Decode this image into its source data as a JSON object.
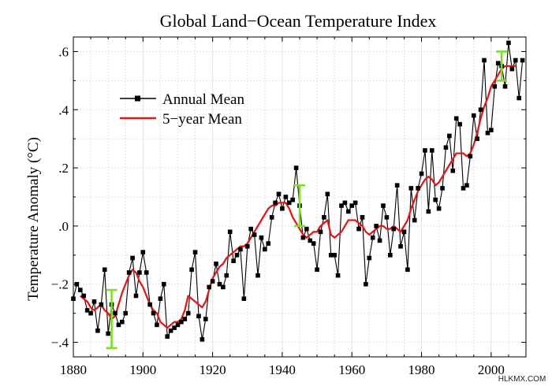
{
  "chart_data": {
    "type": "line",
    "title": "Global Land−Ocean Temperature Index",
    "xlabel": "",
    "ylabel": "Temperature Anomaly (°C)",
    "xlim": [
      1880,
      2010
    ],
    "ylim": [
      -0.45,
      0.65
    ],
    "x_ticks": [
      1880,
      1900,
      1920,
      1940,
      1960,
      1980,
      2000
    ],
    "y_ticks": [
      -0.4,
      -0.2,
      0.0,
      0.2,
      0.4,
      0.6
    ],
    "y_tick_labels": [
      "−.4",
      "−.2",
      ".0",
      ".2",
      ".4",
      ".6"
    ],
    "grid": true,
    "legend_position": "upper-left",
    "series": [
      {
        "name": "Annual Mean",
        "color": "#000000",
        "marker": "square",
        "x": [
          1880,
          1881,
          1882,
          1883,
          1884,
          1885,
          1886,
          1887,
          1888,
          1889,
          1890,
          1891,
          1892,
          1893,
          1894,
          1895,
          1896,
          1897,
          1898,
          1899,
          1900,
          1901,
          1902,
          1903,
          1904,
          1905,
          1906,
          1907,
          1908,
          1909,
          1910,
          1911,
          1912,
          1913,
          1914,
          1915,
          1916,
          1917,
          1918,
          1919,
          1920,
          1921,
          1922,
          1923,
          1924,
          1925,
          1926,
          1927,
          1928,
          1929,
          1930,
          1931,
          1932,
          1933,
          1934,
          1935,
          1936,
          1937,
          1938,
          1939,
          1940,
          1941,
          1942,
          1943,
          1944,
          1945,
          1946,
          1947,
          1948,
          1949,
          1950,
          1951,
          1952,
          1953,
          1954,
          1955,
          1956,
          1957,
          1958,
          1959,
          1960,
          1961,
          1962,
          1963,
          1964,
          1965,
          1966,
          1967,
          1968,
          1969,
          1970,
          1971,
          1972,
          1973,
          1974,
          1975,
          1976,
          1977,
          1978,
          1979,
          1980,
          1981,
          1982,
          1983,
          1984,
          1985,
          1986,
          1987,
          1988,
          1989,
          1990,
          1991,
          1992,
          1993,
          1994,
          1995,
          1996,
          1997,
          1998,
          1999,
          2000,
          2001,
          2002,
          2003,
          2004,
          2005,
          2006,
          2007,
          2008,
          2009
        ],
        "values": [
          -0.25,
          -0.2,
          -0.22,
          -0.24,
          -0.29,
          -0.3,
          -0.26,
          -0.36,
          -0.27,
          -0.15,
          -0.37,
          -0.27,
          -0.3,
          -0.34,
          -0.33,
          -0.3,
          -0.16,
          -0.11,
          -0.24,
          -0.16,
          -0.09,
          -0.16,
          -0.27,
          -0.3,
          -0.34,
          -0.25,
          -0.2,
          -0.38,
          -0.36,
          -0.35,
          -0.34,
          -0.33,
          -0.32,
          -0.3,
          -0.15,
          -0.09,
          -0.31,
          -0.39,
          -0.32,
          -0.21,
          -0.19,
          -0.13,
          -0.2,
          -0.21,
          -0.17,
          -0.02,
          -0.12,
          -0.1,
          -0.08,
          -0.25,
          -0.07,
          -0.01,
          -0.03,
          -0.17,
          -0.04,
          -0.08,
          -0.06,
          0.03,
          0.08,
          0.11,
          0.06,
          0.1,
          0.08,
          0.09,
          0.2,
          0.07,
          -0.04,
          -0.01,
          -0.05,
          -0.06,
          -0.15,
          -0.02,
          0.03,
          0.11,
          -0.1,
          -0.1,
          -0.17,
          0.07,
          0.08,
          0.05,
          0.07,
          0.08,
          -0.01,
          0.03,
          -0.2,
          -0.11,
          -0.04,
          0.0,
          -0.05,
          0.07,
          0.03,
          -0.1,
          -0.01,
          0.14,
          -0.07,
          -0.02,
          -0.15,
          0.13,
          0.02,
          0.13,
          0.18,
          0.26,
          0.05,
          0.26,
          0.09,
          0.06,
          0.13,
          0.27,
          0.31,
          0.19,
          0.37,
          0.35,
          0.13,
          0.14,
          0.24,
          0.38,
          0.3,
          0.4,
          0.57,
          0.32,
          0.33,
          0.48,
          0.56,
          0.55,
          0.48,
          0.63,
          0.54,
          0.57,
          0.44,
          0.57
        ]
      },
      {
        "name": "5−year Mean",
        "color": "#e01a1a",
        "marker": "none",
        "x": [
          1882,
          1883,
          1884,
          1885,
          1886,
          1887,
          1888,
          1889,
          1890,
          1891,
          1892,
          1893,
          1894,
          1895,
          1896,
          1897,
          1898,
          1899,
          1900,
          1901,
          1902,
          1903,
          1904,
          1905,
          1906,
          1907,
          1908,
          1909,
          1910,
          1911,
          1912,
          1913,
          1914,
          1915,
          1916,
          1917,
          1918,
          1919,
          1920,
          1921,
          1922,
          1923,
          1924,
          1925,
          1926,
          1927,
          1928,
          1929,
          1930,
          1931,
          1932,
          1933,
          1934,
          1935,
          1936,
          1937,
          1938,
          1939,
          1940,
          1941,
          1942,
          1943,
          1944,
          1945,
          1946,
          1947,
          1948,
          1949,
          1950,
          1951,
          1952,
          1953,
          1954,
          1955,
          1956,
          1957,
          1958,
          1959,
          1960,
          1961,
          1962,
          1963,
          1964,
          1965,
          1966,
          1967,
          1968,
          1969,
          1970,
          1971,
          1972,
          1973,
          1974,
          1975,
          1976,
          1977,
          1978,
          1979,
          1980,
          1981,
          1982,
          1983,
          1984,
          1985,
          1986,
          1987,
          1988,
          1989,
          1990,
          1991,
          1992,
          1993,
          1994,
          1995,
          1996,
          1997,
          1998,
          1999,
          2000,
          2001,
          2002,
          2003,
          2004,
          2005,
          2006,
          2007
        ],
        "values": [
          -0.24,
          -0.25,
          -0.26,
          -0.28,
          -0.29,
          -0.28,
          -0.27,
          -0.29,
          -0.3,
          -0.32,
          -0.31,
          -0.27,
          -0.23,
          -0.2,
          -0.17,
          -0.15,
          -0.16,
          -0.19,
          -0.21,
          -0.24,
          -0.27,
          -0.29,
          -0.3,
          -0.33,
          -0.34,
          -0.35,
          -0.34,
          -0.33,
          -0.33,
          -0.32,
          -0.29,
          -0.24,
          -0.25,
          -0.26,
          -0.27,
          -0.28,
          -0.26,
          -0.22,
          -0.18,
          -0.16,
          -0.14,
          -0.13,
          -0.11,
          -0.1,
          -0.09,
          -0.08,
          -0.07,
          -0.07,
          -0.06,
          -0.04,
          -0.02,
          0.0,
          0.02,
          0.04,
          0.06,
          0.07,
          0.07,
          0.08,
          0.08,
          0.08,
          0.06,
          0.03,
          0.01,
          -0.01,
          -0.03,
          -0.04,
          -0.03,
          -0.02,
          -0.02,
          0.0,
          0.01,
          0.02,
          -0.03,
          -0.04,
          -0.03,
          -0.02,
          0.0,
          0.02,
          0.02,
          0.02,
          0.01,
          0.0,
          -0.02,
          -0.03,
          -0.02,
          -0.01,
          0.0,
          0.0,
          -0.01,
          -0.01,
          0.0,
          -0.01,
          -0.02,
          0.0,
          0.02,
          0.06,
          0.09,
          0.12,
          0.14,
          0.16,
          0.17,
          0.16,
          0.14,
          0.15,
          0.17,
          0.19,
          0.21,
          0.23,
          0.25,
          0.25,
          0.25,
          0.24,
          0.25,
          0.28,
          0.32,
          0.37,
          0.41,
          0.44,
          0.48,
          0.5,
          0.52,
          0.54,
          0.55,
          0.55,
          0.55,
          0.55
        ]
      }
    ],
    "error_bars": [
      {
        "x": 1891,
        "low": -0.42,
        "high": -0.22,
        "color": "#7fdc2b"
      },
      {
        "x": 1945,
        "low": 0.0,
        "high": 0.14,
        "color": "#7fdc2b"
      },
      {
        "x": 2003,
        "low": 0.5,
        "high": 0.6,
        "color": "#7fdc2b"
      }
    ]
  },
  "watermark": "HLKMX.COM"
}
